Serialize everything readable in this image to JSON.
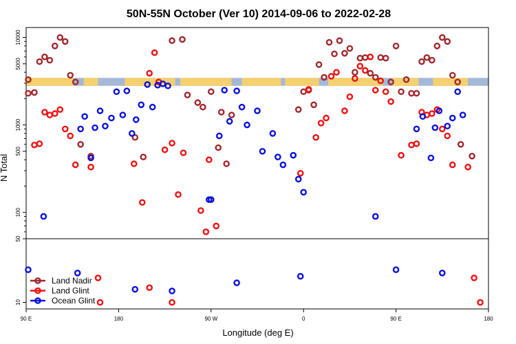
{
  "chart_data": {
    "type": "scatter",
    "title": "50N-55N October (Ver 10)   2014-09-06 to 2022-02-28",
    "xlabel": "Longitude (deg E)",
    "ylabel": "N Total",
    "x_ticks": [
      {
        "value": 90,
        "label": "90 E"
      },
      {
        "value": 180,
        "label": "180"
      },
      {
        "value": 270,
        "label": "90 W"
      },
      {
        "value": 360,
        "label": "0"
      },
      {
        "value": 450,
        "label": "90 E"
      },
      {
        "value": 540,
        "label": "180"
      }
    ],
    "xlim": [
      90,
      540
    ],
    "top_panel": {
      "scale": "log",
      "ylim": [
        50,
        13000
      ],
      "y_ticks": [
        {
          "value": 50,
          "label": "50"
        },
        {
          "value": 100,
          "label": "100"
        },
        {
          "value": 500,
          "label": "500"
        },
        {
          "value": 1000,
          "label": "1000"
        },
        {
          "value": 5000,
          "label": "5000"
        },
        {
          "value": 10000,
          "label": "10000"
        }
      ]
    },
    "bottom_panel": {
      "ylim": [
        6,
        49
      ],
      "y_ticks": [
        {
          "value": 10,
          "label": "10"
        }
      ]
    },
    "land_band": {
      "y_low": 2800,
      "y_high": 3450,
      "ocean_color": "#a4b9d8",
      "land_color": "#f5d06e"
    },
    "series": [
      {
        "name": "Land Nadir",
        "color": "#a0282d",
        "points": [
          [
            92,
            3300
          ],
          [
            92,
            2300
          ],
          [
            98,
            2350
          ],
          [
            103,
            5300
          ],
          [
            108,
            6000
          ],
          [
            113,
            5500
          ],
          [
            118,
            8000
          ],
          [
            123,
            10000
          ],
          [
            128,
            9000
          ],
          [
            133,
            3700
          ],
          [
            138,
            3100
          ],
          [
            143,
            600
          ],
          [
            153,
            440
          ],
          [
            196,
            720
          ],
          [
            204,
            430
          ],
          [
            232,
            9200
          ],
          [
            242,
            9500
          ],
          [
            247,
            2200
          ],
          [
            257,
            1800
          ],
          [
            262,
            1600
          ],
          [
            270,
            2400
          ],
          [
            277,
            550
          ],
          [
            280,
            1400
          ],
          [
            285,
            360
          ],
          [
            290,
            1300
          ],
          [
            355,
            1500
          ],
          [
            360,
            2400
          ],
          [
            365,
            2500
          ],
          [
            370,
            1700
          ],
          [
            375,
            4900
          ],
          [
            380,
            3500
          ],
          [
            385,
            8800
          ],
          [
            390,
            6500
          ],
          [
            395,
            9200
          ],
          [
            400,
            6600
          ],
          [
            405,
            7500
          ],
          [
            410,
            4000
          ],
          [
            415,
            5800
          ],
          [
            420,
            5900
          ],
          [
            425,
            3900
          ],
          [
            430,
            3500
          ],
          [
            435,
            5900
          ],
          [
            440,
            5800
          ],
          [
            445,
            3100
          ],
          [
            450,
            8000
          ],
          [
            455,
            2400
          ],
          [
            460,
            3300
          ],
          [
            465,
            2300
          ],
          [
            470,
            2300
          ],
          [
            475,
            5300
          ],
          [
            480,
            5900
          ],
          [
            485,
            5500
          ],
          [
            490,
            8000
          ],
          [
            495,
            10000
          ],
          [
            500,
            9000
          ],
          [
            505,
            3700
          ],
          [
            510,
            3100
          ],
          [
            513,
            600
          ],
          [
            524,
            440
          ]
        ],
        "bottom_points": []
      },
      {
        "name": "Land Glint",
        "color": "#ee1111",
        "points": [
          [
            98,
            590
          ],
          [
            103,
            610
          ],
          [
            108,
            1400
          ],
          [
            113,
            1300
          ],
          [
            118,
            1350
          ],
          [
            123,
            1500
          ],
          [
            128,
            900
          ],
          [
            133,
            750
          ],
          [
            138,
            350
          ],
          [
            153,
            330
          ],
          [
            195,
            360
          ],
          [
            203,
            130
          ],
          [
            210,
            3900
          ],
          [
            215,
            6700
          ],
          [
            219,
            3100
          ],
          [
            225,
            520
          ],
          [
            232,
            620
          ],
          [
            238,
            160
          ],
          [
            243,
            480
          ],
          [
            260,
            105
          ],
          [
            265,
            60
          ],
          [
            268,
            400
          ],
          [
            275,
            70
          ],
          [
            357,
            280
          ],
          [
            365,
            2550
          ],
          [
            372,
            720
          ],
          [
            377,
            1050
          ],
          [
            382,
            1200
          ],
          [
            387,
            3600
          ],
          [
            392,
            4000
          ],
          [
            400,
            1450
          ],
          [
            405,
            2100
          ],
          [
            410,
            3400
          ],
          [
            415,
            4700
          ],
          [
            420,
            4200
          ],
          [
            425,
            6000
          ],
          [
            430,
            2500
          ],
          [
            435,
            3200
          ],
          [
            440,
            2400
          ],
          [
            445,
            1850
          ],
          [
            455,
            450
          ],
          [
            465,
            590
          ],
          [
            470,
            610
          ],
          [
            475,
            1400
          ],
          [
            480,
            1300
          ],
          [
            485,
            1350
          ],
          [
            490,
            1500
          ],
          [
            495,
            900
          ],
          [
            500,
            750
          ],
          [
            505,
            350
          ],
          [
            520,
            330
          ]
        ],
        "bottom_points": [
          [
            160,
            25
          ],
          [
            162,
            10
          ],
          [
            210,
            19
          ],
          [
            232,
            10
          ],
          [
            532,
            10
          ],
          [
            526,
            25
          ]
        ]
      },
      {
        "name": "Ocean Glint",
        "color": "#0a10dd",
        "points": [
          [
            107,
            90
          ],
          [
            143,
            900
          ],
          [
            147,
            1250
          ],
          [
            153,
            420
          ],
          [
            157,
            930
          ],
          [
            162,
            1450
          ],
          [
            167,
            970
          ],
          [
            173,
            1200
          ],
          [
            178,
            2400
          ],
          [
            184,
            1300
          ],
          [
            188,
            2450
          ],
          [
            193,
            800
          ],
          [
            197,
            1150
          ],
          [
            202,
            1700
          ],
          [
            208,
            2900
          ],
          [
            213,
            1600
          ],
          [
            218,
            2850
          ],
          [
            223,
            2950
          ],
          [
            228,
            2800
          ],
          [
            268,
            140
          ],
          [
            270,
            140
          ],
          [
            278,
            750
          ],
          [
            283,
            2500
          ],
          [
            288,
            1100
          ],
          [
            295,
            2450
          ],
          [
            300,
            1600
          ],
          [
            305,
            1000
          ],
          [
            315,
            1450
          ],
          [
            320,
            500
          ],
          [
            330,
            800
          ],
          [
            335,
            430
          ],
          [
            340,
            350
          ],
          [
            350,
            450
          ],
          [
            355,
            240
          ],
          [
            360,
            170
          ],
          [
            430,
            90
          ],
          [
            470,
            900
          ],
          [
            476,
            1250
          ],
          [
            484,
            420
          ],
          [
            488,
            930
          ],
          [
            492,
            1450
          ],
          [
            500,
            970
          ],
          [
            505,
            1200
          ],
          [
            510,
            2400
          ],
          [
            515,
            1300
          ]
        ],
        "bottom_points": [
          [
            92,
            30
          ],
          [
            140,
            28
          ],
          [
            196,
            18
          ],
          [
            232,
            17
          ],
          [
            295,
            22
          ],
          [
            357,
            26
          ],
          [
            450,
            30
          ],
          [
            495,
            28
          ]
        ]
      }
    ],
    "legend": {
      "placement": "bottom-left",
      "entries": [
        "Land Nadir",
        "Land Glint",
        "Ocean Glint"
      ]
    }
  }
}
